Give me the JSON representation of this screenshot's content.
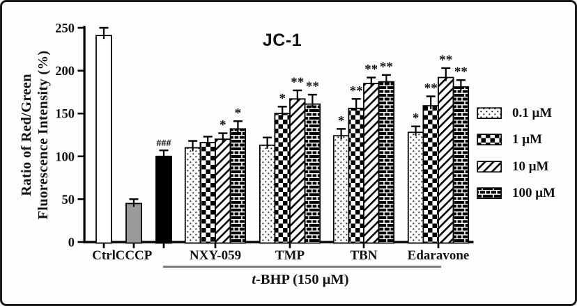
{
  "chart_data": {
    "type": "bar",
    "title": "JC-1",
    "ylabel": "Ratio of Red/Green Fluorescence Intensity (%)",
    "ylabel_line1": "Ratio of Red/Green",
    "ylabel_line2": "Fluorescence Intensity (%)",
    "ylim": [
      0,
      250
    ],
    "yticks": [
      0,
      50,
      100,
      150,
      200,
      250
    ],
    "grid": "off",
    "legend_position": "right",
    "bars_single": [
      {
        "label": "Ctrl",
        "pattern": "white",
        "value": 241,
        "error": 9,
        "sig": ""
      },
      {
        "label": "CCCP",
        "pattern": "gray",
        "value": 45,
        "error": 5,
        "sig": ""
      },
      {
        "label": "",
        "pattern": "black",
        "value": 100,
        "error": 7,
        "sig": "###"
      }
    ],
    "group_series": [
      "0.1 μM",
      "1 μM",
      "10 μM",
      "100 μM"
    ],
    "patterns": [
      "dotted",
      "checker",
      "diagonal",
      "brick"
    ],
    "groups": [
      {
        "label": "NXY-059",
        "bars": [
          {
            "value": 110,
            "error": 8,
            "sig": ""
          },
          {
            "value": 116,
            "error": 7,
            "sig": ""
          },
          {
            "value": 120,
            "error": 7,
            "sig": "*"
          },
          {
            "value": 132,
            "error": 9,
            "sig": "*"
          }
        ]
      },
      {
        "label": "TMP",
        "bars": [
          {
            "value": 113,
            "error": 9,
            "sig": ""
          },
          {
            "value": 150,
            "error": 8,
            "sig": "*"
          },
          {
            "value": 167,
            "error": 10,
            "sig": "**"
          },
          {
            "value": 161,
            "error": 11,
            "sig": "**"
          }
        ]
      },
      {
        "label": "TBN",
        "bars": [
          {
            "value": 124,
            "error": 8,
            "sig": "*"
          },
          {
            "value": 156,
            "error": 11,
            "sig": "**"
          },
          {
            "value": 185,
            "error": 7,
            "sig": "**"
          },
          {
            "value": 187,
            "error": 8,
            "sig": "**"
          }
        ]
      },
      {
        "label": "Edaravone",
        "bars": [
          {
            "value": 128,
            "error": 7,
            "sig": "*"
          },
          {
            "value": 159,
            "error": 11,
            "sig": "**"
          },
          {
            "value": 192,
            "error": 11,
            "sig": "**"
          },
          {
            "value": 181,
            "error": 8,
            "sig": "**"
          }
        ]
      }
    ],
    "legend": [
      {
        "label": "0.1 μM",
        "pattern": "dotted"
      },
      {
        "label": "1 μM",
        "pattern": "checker"
      },
      {
        "label": "10 μM",
        "pattern": "diagonal"
      },
      {
        "label": "100 μM",
        "pattern": "brick"
      }
    ],
    "treatment_label_italic": "t",
    "treatment_label_rest": "-BHP (150 μM)",
    "colors": {
      "gray_bar": "#9b9b9b",
      "black_bar": "#000000",
      "white_bar": "#ffffff",
      "treatment_line": "#7d7d7d",
      "axis": "#000000"
    }
  }
}
